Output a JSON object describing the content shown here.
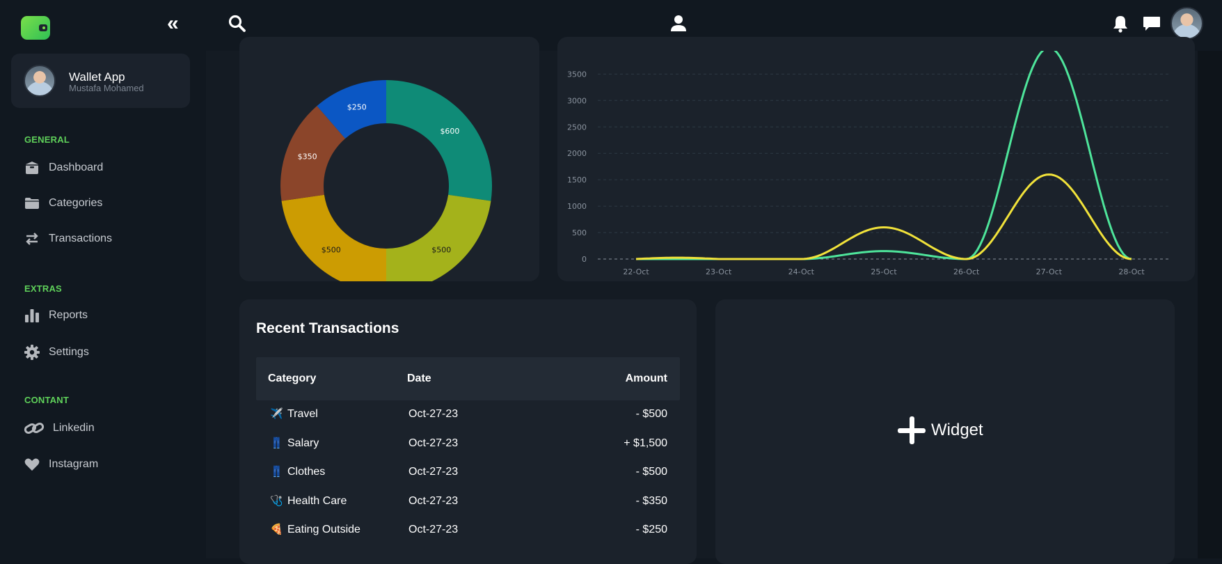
{
  "app": {
    "title": "Wallet App",
    "user": "Mustafa Mohamed"
  },
  "sidebar": {
    "collapse_icon": "double-chevron-left-icon",
    "sections": [
      {
        "title": "GENERAL",
        "items": [
          {
            "label": "Dashboard",
            "icon": "box-icon"
          },
          {
            "label": "Categories",
            "icon": "folder-icon"
          },
          {
            "label": "Transactions",
            "icon": "arrows-exchange-icon"
          }
        ]
      },
      {
        "title": "EXTRAS",
        "items": [
          {
            "label": "Reports",
            "icon": "bar-chart-icon"
          },
          {
            "label": "Settings",
            "icon": "gear-icon"
          }
        ]
      },
      {
        "title": "CONTANT",
        "items": [
          {
            "label": "Linkedin",
            "icon": "link-icon"
          },
          {
            "label": "Instagram",
            "icon": "heart-icon"
          }
        ]
      }
    ]
  },
  "topbar": {
    "icons": [
      "search-icon",
      "user-icon",
      "bell-icon",
      "chat-icon",
      "avatar"
    ]
  },
  "colors": {
    "accent": "#5fd15a",
    "background": "#111820",
    "card": "#1b222b",
    "line_green": "#4ee59b",
    "line_yellow": "#f1e23a"
  },
  "chart_data": [
    {
      "type": "pie",
      "donut": true,
      "slices": [
        {
          "label": "$600",
          "value": 600,
          "color": "#0f8b77"
        },
        {
          "label": "$500",
          "value": 500,
          "color": "#a4b21b"
        },
        {
          "label": "$500",
          "value": 500,
          "color": "#cc9c02"
        },
        {
          "label": "$350",
          "value": 350,
          "color": "#8b452a"
        },
        {
          "label": "$250",
          "value": 250,
          "color": "#0b57c4"
        }
      ]
    },
    {
      "type": "line",
      "smooth": true,
      "categories": [
        "22-Oct",
        "23-Oct",
        "24-Oct",
        "25-Oct",
        "26-Oct",
        "27-Oct",
        "28-Oct"
      ],
      "yticks": [
        0,
        500,
        1000,
        1500,
        2000,
        2500,
        3000,
        3500
      ],
      "ylim": [
        0,
        3750
      ],
      "grid": true,
      "series": [
        {
          "values": [
            0,
            0,
            0,
            150,
            0,
            4000,
            0
          ],
          "color": "#4ee59b"
        },
        {
          "values": [
            0,
            0,
            0,
            600,
            0,
            1600,
            0
          ],
          "color": "#f1e23a"
        }
      ]
    }
  ],
  "recent_transactions": {
    "title": "Recent Transactions",
    "columns": [
      "Category",
      "Date",
      "Amount"
    ],
    "rows": [
      {
        "emoji": "✈️",
        "category": "Travel",
        "date": "Oct-27-23",
        "amount": "- $500"
      },
      {
        "emoji": "👖",
        "category": "Salary",
        "date": "Oct-27-23",
        "amount": "+ $1,500"
      },
      {
        "emoji": "👖",
        "category": "Clothes",
        "date": "Oct-27-23",
        "amount": "- $500"
      },
      {
        "emoji": "🩺",
        "category": "Health Care",
        "date": "Oct-27-23",
        "amount": "- $350"
      },
      {
        "emoji": "🍕",
        "category": "Eating Outside",
        "date": "Oct-27-23",
        "amount": "- $250"
      }
    ]
  },
  "widget": {
    "label": "Widget",
    "icon": "plus-icon"
  }
}
